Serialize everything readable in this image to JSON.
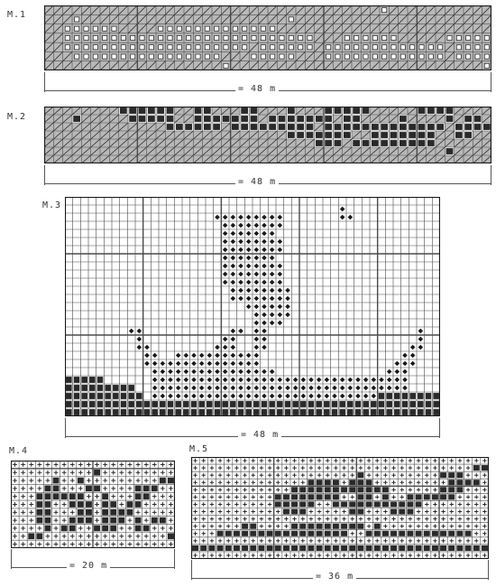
{
  "colors": {
    "paper": "#ffffff",
    "ink": "#1a1a1a",
    "gridline": "#4a4a4a",
    "shaded_cell": "#b8b8b8",
    "dark_cell": "#2a2a2a",
    "filled_square": "#222222"
  },
  "charts": [
    {
      "id": "m1",
      "label": "M.1",
      "columns": 48,
      "rows": 7,
      "background_symbol": "diagonal",
      "pattern_symbol": "box",
      "dimension": "= 48 m",
      "pattern": [
        "....................................#...........",
        "...#......................#.....................",
        "..######....#############.......................",
        "..###########################...######.....#####",
        "..####################.######.#############.####",
        "...################...#####...#############.####",
        "...................#...........................#"
      ]
    },
    {
      "id": "m2",
      "label": "M.2",
      "columns": 48,
      "rows": 7,
      "background_symbol": "diagonal",
      "pattern_symbol": "dark",
      "dimension": "= 48 m",
      "pattern": [
        "........######..##...##...#...#####.....####....",
        "...#.....#####..#######.#######.##....#....#.##.",
        ".............######.#########.#############.####",
        "..........................#######..#######..##..",
        ".............................###.#########......",
        "...........................................#....",
        "................................................"
      ]
    },
    {
      "id": "m3",
      "label": "M.3",
      "columns": 48,
      "rows": 27,
      "background_symbol": "empty",
      "pattern_symbol": "diamond",
      "dark_symbol": "dark",
      "dimension": "= 48 m",
      "pattern": [
        "................................................",
        "...................................+............",
        "...................+++++++++.......++...........",
        "....................++++++++....................",
        "....................+++++++.....................",
        "....................++++++++....................",
        "....................++++++++....................",
        "....................+++++++.....................",
        "....................++++++++....................",
        "....................++++++++....................",
        "....................++++++++....................",
        ".....................++++++++...................",
        ".....................++++++++...................",
        ".......................++++++...................",
        "........................+++++...................",
        "........................++++....................",
        "........++...........++.++...................+..",
        ".........+..........++..++...................+..",
        ".........++........+++..++..................++..",
        "..........++..+++++++++++..................++...",
        "..........+++++++++++++++.................+++...",
        "...........++++++++++++++++..............+++....",
        "XXXXX......+++++++++++++++++++++++++++++++++....",
        "XXXXXXXXX..+++++++++++++++++++++++++++++++++....",
        "XXXXXXXXXX.+++++++++++++++++++++++++++++XXXXXXXX",
        "XXXXXXXXXXXXXXXXXXXXXXXXXXXXXXXXXXXXXXXXXXXXXXXX",
        "XXXXXXXXXXXXXXXXXXXXXXXXXXXXXXXXXXXXXXXXXXXXXXXX"
      ]
    },
    {
      "id": "m4",
      "label": "M.4",
      "columns": 20,
      "rows": 11,
      "background_symbol": "plus",
      "pattern_symbol": "dark",
      "dimension": "= 20 m",
      "pattern": [
        "....................",
        "..........X.........",
        ".....X..X.........XX",
        "....XX...XX....XXX..",
        "...XXXXXX..X...XX...",
        "...XX..XXX.XX.XX....",
        "...XX...XX.XXXX.....",
        "...XX..XXX.XXX.X.XX.",
        "....X.XX..XXX..XX...",
        "..XX...............X",
        "...................."
      ]
    },
    {
      "id": "m5",
      "label": "M.5",
      "columns": 36,
      "rows": 14,
      "background_symbol": "plus",
      "pattern_symbol": "dark",
      "dimension": "= 36 m",
      "pattern": [
        "....................................",
        "..................................XX",
        "....................X.........XXX...",
        "..............XXXX.XXX.........XXXX.",
        "............XXXXXXXXXXXX......XXX...",
        "..........XXXXXXXX..XX.X..XXXXXX....",
        "..........XXXXX..XXXXXXXXXXX........",
        "...........XXX.....XX...XXX.........",
        "....................................",
        "......XX....XXXXXXXXX.X.............",
        "...XXXXXXXXXXXXXXXX..XXXXXXXXXXXXX..",
        "....................................",
        "XXXXXXXXXXXXXXXXXXXXXXXXXXXXXXXXXXXX",
        "...................................."
      ]
    }
  ]
}
